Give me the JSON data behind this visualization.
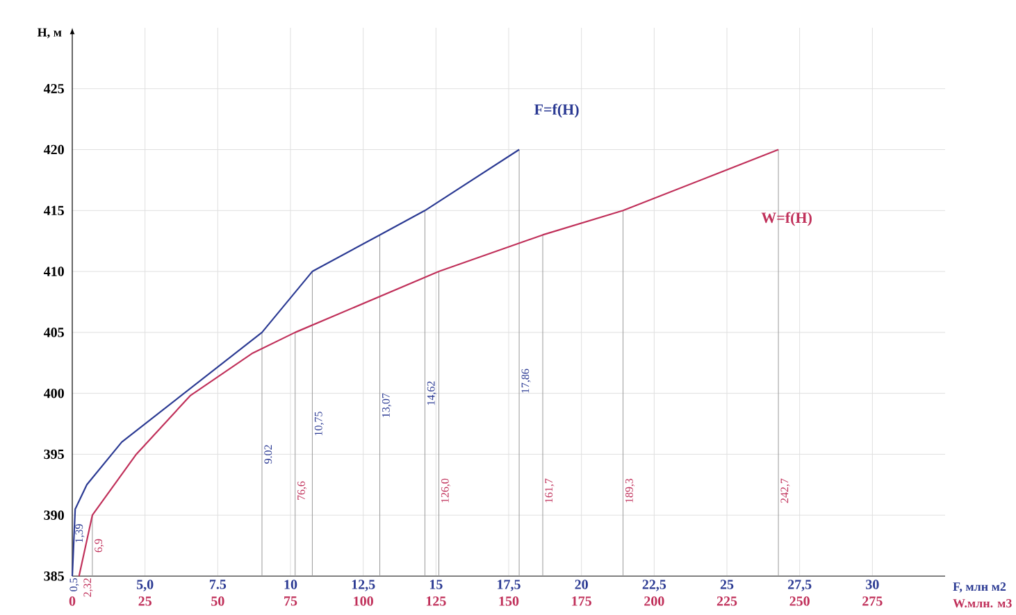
{
  "chart_data": {
    "type": "line",
    "ylabel": "H, м",
    "xlabel": "F, млн м2",
    "x2label": "W.млн. м3",
    "xlim": [
      2.5,
      32.5
    ],
    "ylim": [
      385,
      430
    ],
    "x2lim": [
      0,
      300
    ],
    "xticks": [
      {
        "value": 5,
        "label": "5,0"
      },
      7.5,
      10,
      {
        "value": 12.5,
        "label": "12,5"
      },
      15,
      {
        "value": 17.5,
        "label": "17,5"
      },
      20,
      {
        "value": 22.5,
        "label": "22,5"
      },
      25,
      {
        "value": 27.5,
        "label": "27,5"
      },
      30
    ],
    "yticks": [
      385,
      390,
      395,
      400,
      405,
      410,
      415,
      420,
      425
    ],
    "x2ticks": [
      0,
      25,
      50,
      75,
      100,
      125,
      150,
      175,
      200,
      225,
      250,
      275
    ],
    "grid": true,
    "series": [
      {
        "name": "F=f(H)",
        "color": "#2b3a93",
        "x": [
          2.5,
          2.6,
          3.0,
          4.2,
          9.02,
          10.75,
          13.07,
          14.62,
          17.86
        ],
        "values": [
          385,
          390.5,
          392.5,
          396,
          405,
          410,
          413,
          415,
          420
        ]
      },
      {
        "name": "W=f(H)",
        "color": "#c0305a",
        "axis": "x2",
        "x": [
          2.32,
          6.9,
          22,
          40.5,
          62,
          76.6,
          126.0,
          161.7,
          189.3,
          242.7
        ],
        "values": [
          385,
          390,
          395,
          399.8,
          403.3,
          405,
          410,
          413,
          415,
          420
        ]
      }
    ],
    "ref_lines": [
      {
        "axis": "x",
        "value": 9.02,
        "label": "9.02",
        "color": "#999999"
      },
      {
        "axis": "x",
        "value": 10.75,
        "label": "10,75",
        "color": "#999999"
      },
      {
        "axis": "x",
        "value": 13.07,
        "label": "13,07",
        "color": "#999999"
      },
      {
        "axis": "x",
        "value": 14.62,
        "label": "14,62",
        "color": "#999999"
      },
      {
        "axis": "x",
        "value": 17.86,
        "label": "17,86",
        "color": "#999999"
      },
      {
        "axis": "x2",
        "value": 6.9,
        "label": "6,9",
        "color": "#999999"
      },
      {
        "axis": "x2",
        "value": 76.6,
        "label": "76,6",
        "color": "#999999"
      },
      {
        "axis": "x2",
        "value": 126.0,
        "label": "126,0",
        "color": "#999999"
      },
      {
        "axis": "x2",
        "value": 161.7,
        "label": "161,7",
        "color": "#999999"
      },
      {
        "axis": "x2",
        "value": 189.3,
        "label": "189,3",
        "color": "#999999"
      },
      {
        "axis": "x2",
        "value": 242.7,
        "label": "242,7",
        "color": "#999999"
      }
    ],
    "annotations": [
      "0,5",
      "1,39",
      "2,32"
    ]
  }
}
